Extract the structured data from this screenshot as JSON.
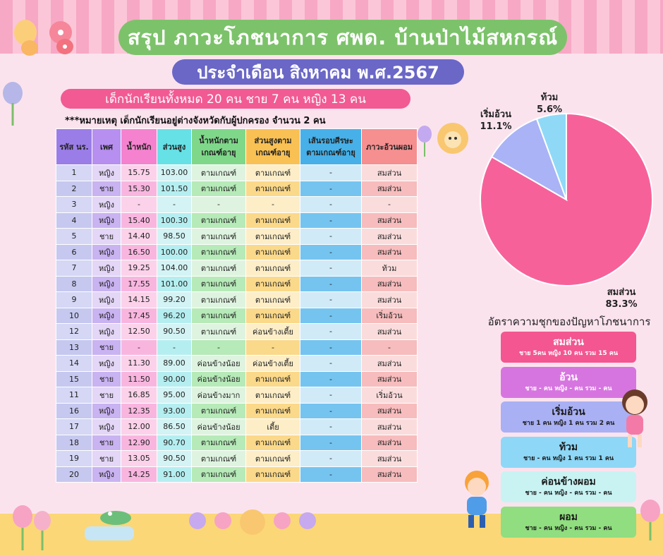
{
  "header": {
    "title": "สรุป ภาวะโภชนาการ ศพด. บ้านป่าไม้สหกรณ์",
    "subtitle": "ประจำเดือน สิงหาคม พ.ศ.2567",
    "totals": "เด็กนักเรียนทั้งหมด 20  คน ชาย 7 คน หญิง 13 คน",
    "note": "***หมายเหตุ เด็กนักเรียนอยู่ต่างจังหวัดกับผู้ปกครอง จำนวน  2 คน"
  },
  "table": {
    "headers": [
      "รหัส นร.",
      "เพศ",
      "น้ำหนัก",
      "ส่วนสูง",
      "น้ำหนักตาม เกณฑ์อายุ",
      "ส่วนสูงตาม เกณฑ์อายุ",
      "เส้นรอบศีรษะ ตามเกณฑ์อายุ",
      "ภาวะอ้วนผอม"
    ],
    "rows": [
      [
        "1",
        "หญิง",
        "15.75",
        "103.00",
        "ตามเกณฑ์",
        "ตามเกณฑ์",
        "-",
        "สมส่วน"
      ],
      [
        "2",
        "ชาย",
        "15.30",
        "101.50",
        "ตามเกณฑ์",
        "ตามเกณฑ์",
        "-",
        "สมส่วน"
      ],
      [
        "3",
        "หญิง",
        "-",
        "-",
        "-",
        "-",
        "-",
        "-"
      ],
      [
        "4",
        "หญิง",
        "15.40",
        "100.30",
        "ตามเกณฑ์",
        "ตามเกณฑ์",
        "-",
        "สมส่วน"
      ],
      [
        "5",
        "ชาย",
        "14.40",
        "98.50",
        "ตามเกณฑ์",
        "ตามเกณฑ์",
        "-",
        "สมส่วน"
      ],
      [
        "6",
        "หญิง",
        "16.50",
        "100.00",
        "ตามเกณฑ์",
        "ตามเกณฑ์",
        "-",
        "สมส่วน"
      ],
      [
        "7",
        "หญิง",
        "19.25",
        "104.00",
        "ตามเกณฑ์",
        "ตามเกณฑ์",
        "-",
        "ท้วม"
      ],
      [
        "8",
        "หญิง",
        "17.55",
        "101.00",
        "ตามเกณฑ์",
        "ตามเกณฑ์",
        "-",
        "สมส่วน"
      ],
      [
        "9",
        "หญิง",
        "14.15",
        "99.20",
        "ตามเกณฑ์",
        "ตามเกณฑ์",
        "-",
        "สมส่วน"
      ],
      [
        "10",
        "หญิง",
        "17.45",
        "96.20",
        "ตามเกณฑ์",
        "ตามเกณฑ์",
        "-",
        "เริ่มอ้วน"
      ],
      [
        "12",
        "หญิง",
        "12.50",
        "90.50",
        "ตามเกณฑ์",
        "ค่อนข้างเตี้ย",
        "-",
        "สมส่วน"
      ],
      [
        "13",
        "ชาย",
        "-",
        "-",
        "-",
        "-",
        "-",
        "-"
      ],
      [
        "14",
        "หญิง",
        "11.30",
        "89.00",
        "ค่อนข้างน้อย",
        "ค่อนข้างเตี้ย",
        "-",
        "สมส่วน"
      ],
      [
        "15",
        "ชาย",
        "11.50",
        "90.00",
        "ค่อนข้างน้อย",
        "ตามเกณฑ์",
        "-",
        "สมส่วน"
      ],
      [
        "11",
        "ชาย",
        "16.85",
        "95.00",
        "ค่อนข้างมาก",
        "ตามเกณฑ์",
        "-",
        "เริ่มอ้วน"
      ],
      [
        "16",
        "หญิง",
        "12.35",
        "93.00",
        "ตามเกณฑ์",
        "ตามเกณฑ์",
        "-",
        "สมส่วน"
      ],
      [
        "17",
        "หญิง",
        "12.00",
        "86.50",
        "ค่อนข้างน้อย",
        "เตี้ย",
        "-",
        "สมส่วน"
      ],
      [
        "18",
        "ชาย",
        "12.90",
        "90.70",
        "ตามเกณฑ์",
        "ตามเกณฑ์",
        "-",
        "สมส่วน"
      ],
      [
        "19",
        "ชาย",
        "13.05",
        "90.50",
        "ตามเกณฑ์",
        "ตามเกณฑ์",
        "-",
        "สมส่วน"
      ],
      [
        "20",
        "หญิง",
        "14.25",
        "91.00",
        "ตามเกณฑ์",
        "ตามเกณฑ์",
        "-",
        "สมส่วน"
      ]
    ]
  },
  "chart_data": {
    "type": "pie",
    "slices": [
      {
        "label": "สมส่วน",
        "pct": "83.3%",
        "value": 83.3,
        "color": "#f7619a"
      },
      {
        "label": "เริ่มอ้วน",
        "pct": "11.1%",
        "value": 11.1,
        "color": "#a9b3f5"
      },
      {
        "label": "ท้วม",
        "pct": "5.6%",
        "value": 5.6,
        "color": "#8fd9f7"
      }
    ]
  },
  "rates": {
    "caption": "อัตราความชุกของปัญหาโภชนาการ",
    "items": [
      {
        "title": "สมส่วน",
        "sub": "ชาย 5คน  หญิง 10 คน รวม 15 คน",
        "bg": "#f35690",
        "fg": "#ffffff"
      },
      {
        "title": "อ้วน",
        "sub": "ชาย - คน  หญิง - คน รวม - คน",
        "bg": "#d775e0",
        "fg": "#ffffff"
      },
      {
        "title": "เริ่มอ้วน",
        "sub": "ชาย 1 คน หญิง 1 คน รวม 2 คน",
        "bg": "#a9b0f3",
        "fg": "#1a1a1a"
      },
      {
        "title": "ท้วม",
        "sub": "ชาย - คน หญิง 1 คน รวม 1 คน",
        "bg": "#8ed7f6",
        "fg": "#1a1a1a"
      },
      {
        "title": "ค่อนข้างผอม",
        "sub": "ชาย - คน หญิง - คน รวม - คน",
        "bg": "#c9f3f3",
        "fg": "#1a1a1a"
      },
      {
        "title": "ผอม",
        "sub": "ชาย - คน หญิง - คน รวม - คน",
        "bg": "#90de7f",
        "fg": "#1a1a1a"
      }
    ]
  }
}
